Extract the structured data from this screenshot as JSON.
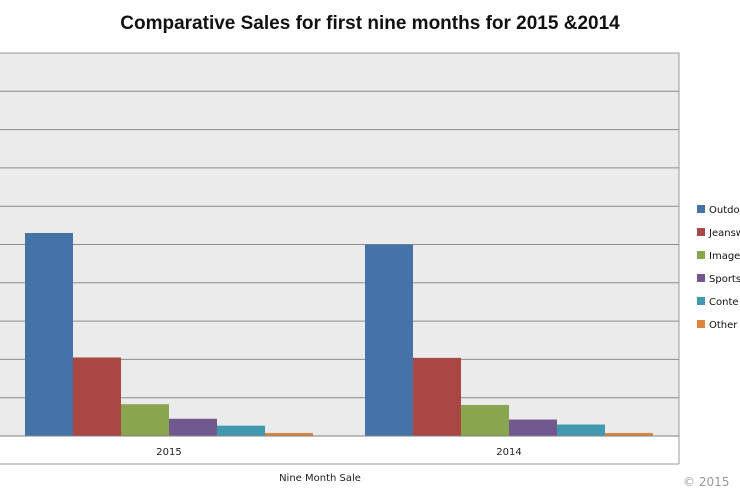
{
  "chart_data": {
    "type": "bar",
    "title": "Comparative Sales for first nine months for 2015 &2014",
    "xlabel": "Nine Month Sale",
    "ylabel": "",
    "categories": [
      "2015",
      "2014"
    ],
    "ylim": [
      0,
      100
    ],
    "grid": true,
    "legend_position": "right",
    "series": [
      {
        "name": "Outdo",
        "color": "#4572A7",
        "values": [
          53,
          50
        ]
      },
      {
        "name": "Jeansw",
        "color": "#AA4643",
        "values": [
          20.5,
          20.4
        ]
      },
      {
        "name": "Image",
        "color": "#89A54E",
        "values": [
          8.3,
          8.1
        ]
      },
      {
        "name": "Sports",
        "color": "#71588F",
        "values": [
          4.5,
          4.3
        ]
      },
      {
        "name": "Conte",
        "color": "#4198AF",
        "values": [
          2.7,
          3.0
        ]
      },
      {
        "name": "Other",
        "color": "#DB843D",
        "values": [
          0.8,
          0.8
        ]
      }
    ]
  },
  "copyright": "© 2015"
}
